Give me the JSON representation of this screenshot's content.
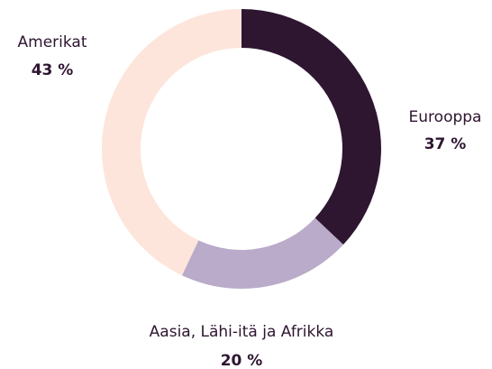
{
  "chart_data": {
    "type": "donut",
    "categories": [
      "Eurooppa",
      "Aasia, Lähi-itä ja Afrikka",
      "Amerikat"
    ],
    "values": [
      37,
      20,
      43
    ],
    "value_labels": [
      "37 %",
      "20 %",
      "43 %"
    ],
    "colors": [
      "#2e1530",
      "#b9abc9",
      "#fde5db"
    ]
  }
}
